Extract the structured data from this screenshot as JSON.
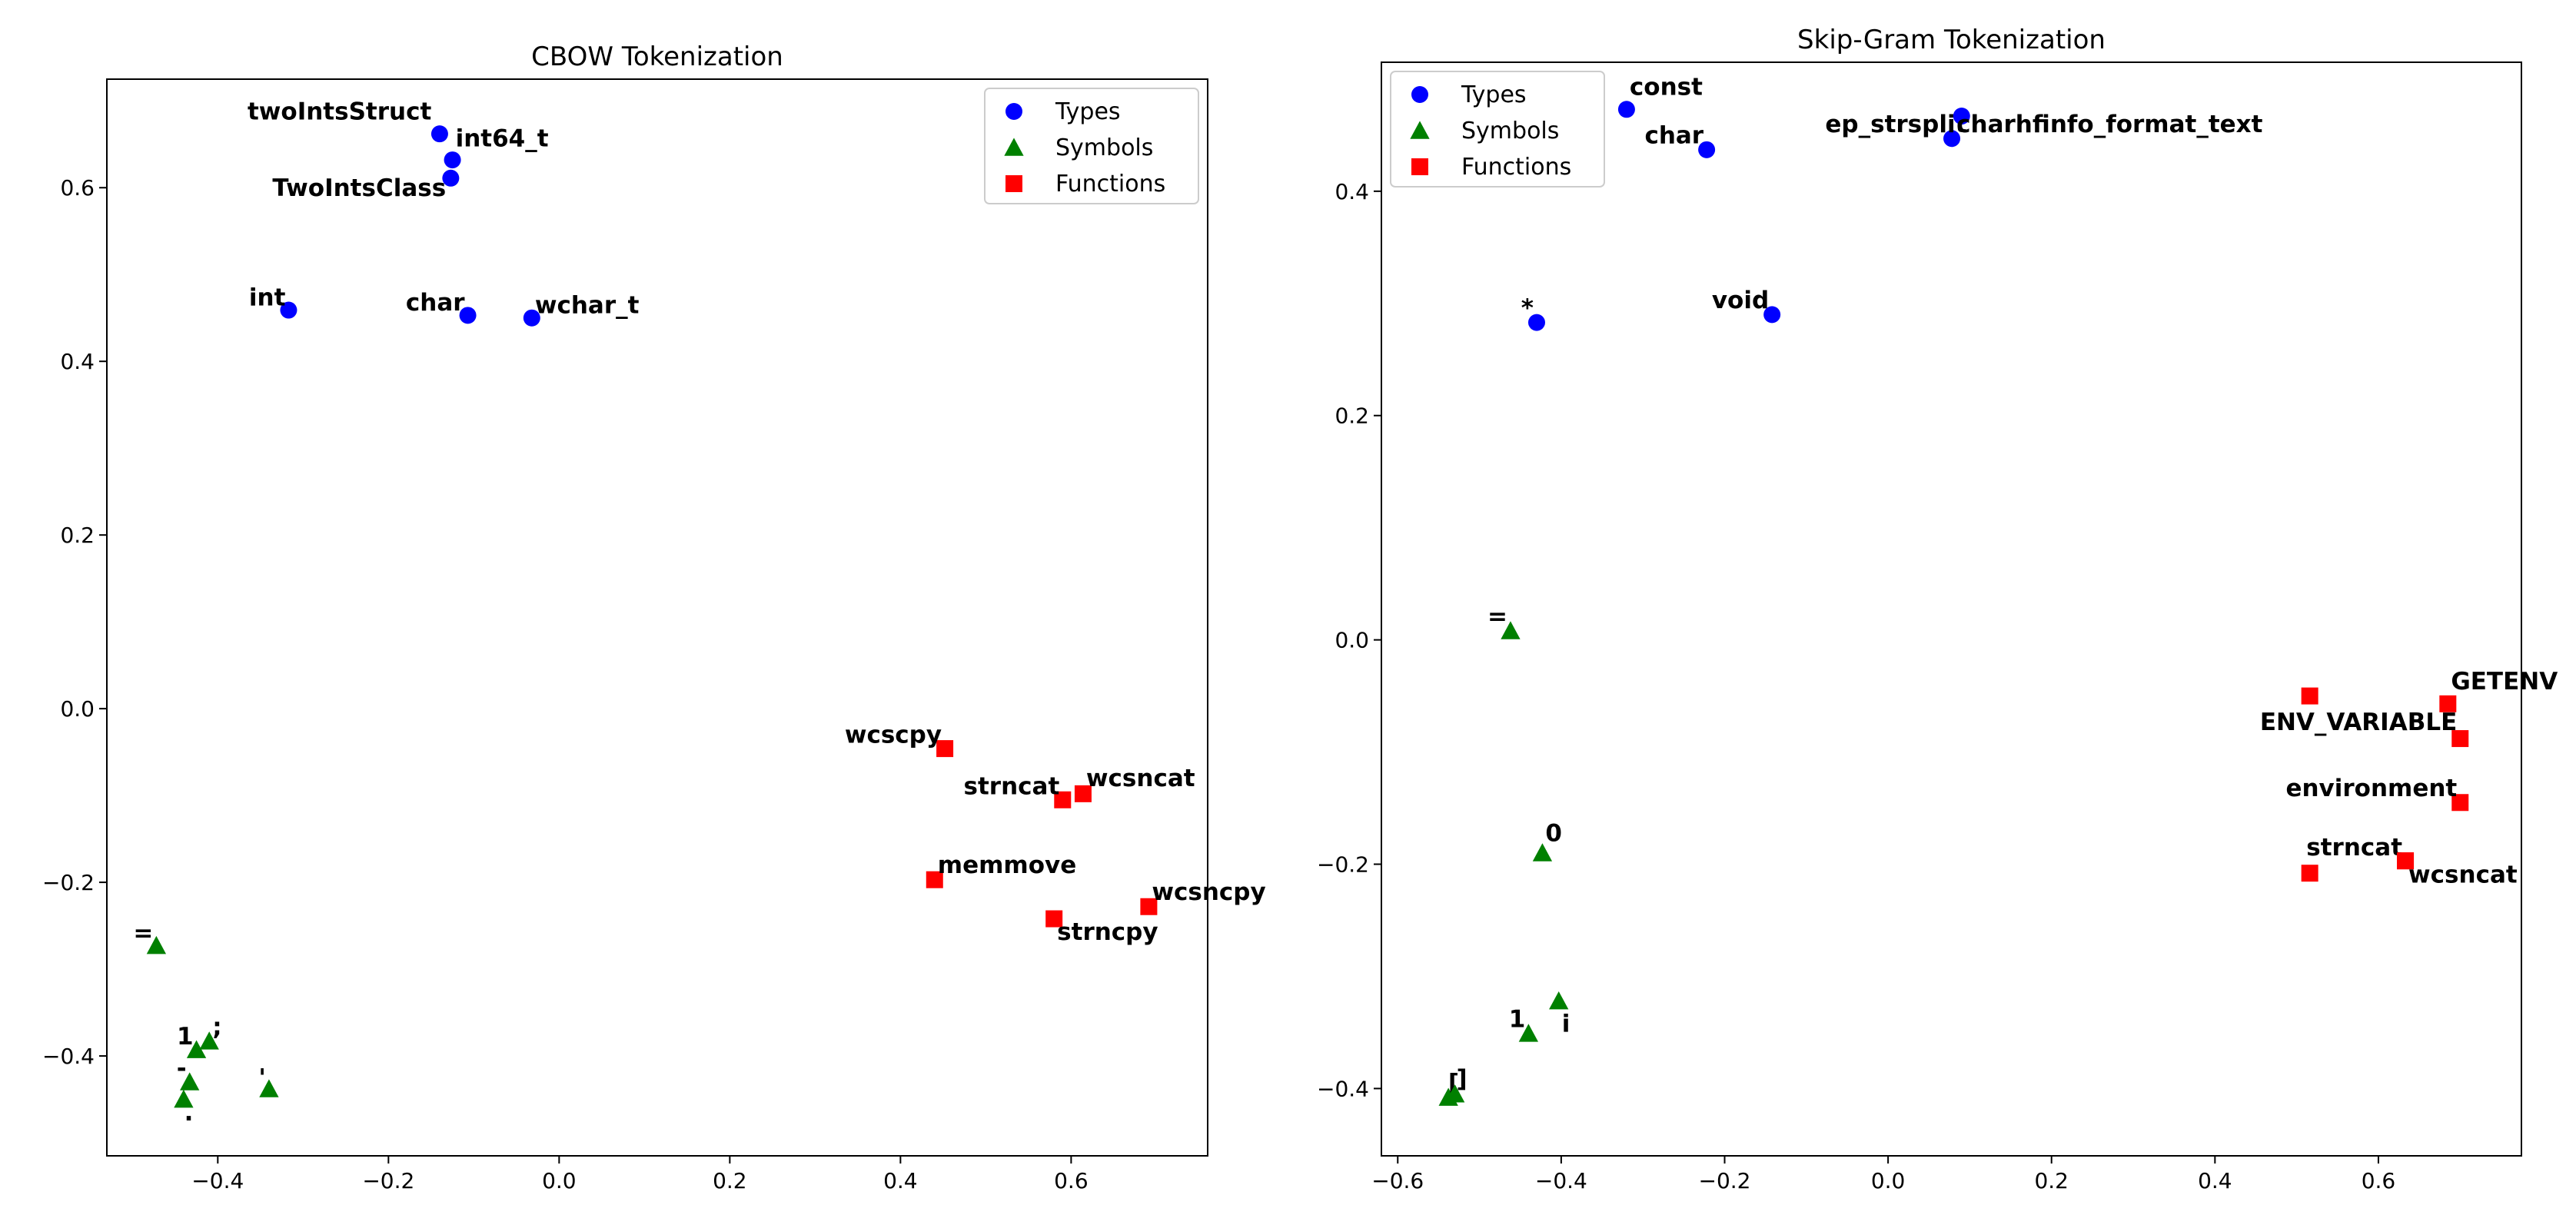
{
  "chart_data": [
    {
      "type": "scatter",
      "title": "CBOW Tokenization",
      "xlabel": "",
      "ylabel": "",
      "xlim": [
        -0.53,
        0.76
      ],
      "ylim": [
        -0.515,
        0.725
      ],
      "xticks": [
        -0.4,
        -0.2,
        0.0,
        0.2,
        0.4,
        0.6
      ],
      "yticks": [
        -0.4,
        -0.2,
        0.0,
        0.2,
        0.4,
        0.6
      ],
      "xtick_labels": [
        "−0.4",
        "−0.2",
        "0.0",
        "0.2",
        "0.4",
        "0.6"
      ],
      "ytick_labels": [
        "−0.4",
        "−0.2",
        "0.0",
        "0.2",
        "0.4",
        "0.6"
      ],
      "grid": false,
      "legend_position": "top-right",
      "series": [
        {
          "name": "Types",
          "marker": "circle",
          "color": "#0000ff",
          "points": [
            {
              "label": "twoIntsStruct",
              "x": -0.14,
              "y": 0.662,
              "anchor": "end",
              "ldx": -0.006,
              "ldy": 0.013
            },
            {
              "label": "int64_t",
              "x": -0.125,
              "y": 0.632,
              "anchor": "start",
              "ldx": 0.0,
              "ldy": 0.012
            },
            {
              "label": "TwoIntsClass",
              "x": -0.127,
              "y": 0.611,
              "anchor": "end",
              "ldx": -0.002,
              "ldy": -0.024
            },
            {
              "label": "int",
              "x": -0.317,
              "y": 0.459,
              "anchor": "end",
              "ldx": 0.0,
              "ldy": 0.002
            },
            {
              "label": "char",
              "x": -0.107,
              "y": 0.453,
              "anchor": "end",
              "ldx": 0.0,
              "ldy": 0.002
            },
            {
              "label": "wchar_t",
              "x": -0.032,
              "y": 0.45,
              "anchor": "start",
              "ldx": 0.0,
              "ldy": 0.002
            }
          ]
        },
        {
          "name": "Symbols",
          "marker": "triangle",
          "color": "#008000",
          "points": [
            {
              "label": "=",
              "x": -0.472,
              "y": -0.273,
              "anchor": "end",
              "ldx": 0.0,
              "ldy": 0.002
            },
            {
              "label": "1",
              "x": -0.425,
              "y": -0.393,
              "anchor": "end",
              "ldx": 0.0,
              "ldy": 0.003
            },
            {
              "label": ";",
              "x": -0.41,
              "y": -0.383,
              "anchor": "start",
              "ldx": 0.0,
              "ldy": 0.004
            },
            {
              "label": "-",
              "x": -0.433,
              "y": -0.43,
              "anchor": "end",
              "ldx": 0.0,
              "ldy": 0.003
            },
            {
              "label": ".",
              "x": -0.44,
              "y": -0.45,
              "anchor": "start",
              "ldx": -0.003,
              "ldy": -0.028
            },
            {
              "label": "'",
              "x": -0.34,
              "y": -0.438,
              "anchor": "end",
              "ldx": 0.0,
              "ldy": 0.0
            }
          ]
        },
        {
          "name": "Functions",
          "marker": "square",
          "color": "#ff0000",
          "points": [
            {
              "label": "wcscpy",
              "x": 0.452,
              "y": -0.046,
              "anchor": "end",
              "ldx": 0.0,
              "ldy": 0.003
            },
            {
              "label": "strncat",
              "x": 0.59,
              "y": -0.105,
              "anchor": "end",
              "ldx": 0.0,
              "ldy": 0.003
            },
            {
              "label": "wcsncat",
              "x": 0.614,
              "y": -0.098,
              "anchor": "start",
              "ldx": 0.0,
              "ldy": 0.005
            },
            {
              "label": "memmove",
              "x": 0.44,
              "y": -0.197,
              "anchor": "start",
              "ldx": 0.0,
              "ldy": 0.004
            },
            {
              "label": "wcsncpy",
              "x": 0.691,
              "y": -0.228,
              "anchor": "start",
              "ldx": 0.0,
              "ldy": 0.004
            },
            {
              "label": "strncpy",
              "x": 0.58,
              "y": -0.242,
              "anchor": "start",
              "ldx": 0.0,
              "ldy": -0.028
            }
          ]
        }
      ]
    },
    {
      "type": "scatter",
      "title": "Skip-Gram Tokenization",
      "xlabel": "",
      "ylabel": "",
      "xlim": [
        -0.62,
        0.775
      ],
      "ylim": [
        -0.46,
        0.515
      ],
      "xticks": [
        -0.6,
        -0.4,
        -0.2,
        0.0,
        0.2,
        0.4,
        0.6
      ],
      "yticks": [
        -0.4,
        -0.2,
        0.0,
        0.2,
        0.4
      ],
      "xtick_labels": [
        "−0.6",
        "−0.4",
        "−0.2",
        "0.0",
        "0.2",
        "0.4",
        "0.6"
      ],
      "ytick_labels": [
        "−0.4",
        "−0.2",
        "0.0",
        "0.2",
        "0.4"
      ],
      "grid": false,
      "legend_position": "top-left",
      "series": [
        {
          "name": "Types",
          "marker": "circle",
          "color": "#0000ff",
          "points": [
            {
              "label": "const",
              "x": -0.32,
              "y": 0.473,
              "anchor": "start",
              "ldx": 0.0,
              "ldy": 0.01
            },
            {
              "label": "char",
              "x": -0.222,
              "y": 0.437,
              "anchor": "end",
              "ldx": 0.0,
              "ldy": 0.003
            },
            {
              "label": "ep_strsplit",
              "x": 0.078,
              "y": 0.447,
              "anchor": "end",
              "ldx": 0.022,
              "ldy": 0.003
            },
            {
              "label": "charhfinfo_format_text",
              "x": 0.09,
              "y": 0.467,
              "anchor": "start",
              "ldx": -0.01,
              "ldy": -0.017
            },
            {
              "label": "*",
              "x": -0.43,
              "y": 0.283,
              "anchor": "end",
              "ldx": 0.0,
              "ldy": 0.003
            },
            {
              "label": "void",
              "x": -0.142,
              "y": 0.29,
              "anchor": "end",
              "ldx": 0.0,
              "ldy": 0.003
            }
          ]
        },
        {
          "name": "Symbols",
          "marker": "triangle",
          "color": "#008000",
          "points": [
            {
              "label": "=",
              "x": -0.462,
              "y": 0.008,
              "anchor": "end",
              "ldx": 0.0,
              "ldy": 0.003
            },
            {
              "label": "0",
              "x": -0.423,
              "y": -0.19,
              "anchor": "start",
              "ldx": 0.0,
              "ldy": 0.008
            },
            {
              "label": "1",
              "x": -0.44,
              "y": -0.351,
              "anchor": "end",
              "ldx": 0.0,
              "ldy": 0.003
            },
            {
              "label": "i",
              "x": -0.403,
              "y": -0.322,
              "anchor": "start",
              "ldx": 0.0,
              "ldy": -0.03
            },
            {
              "label": "[",
              "x": -0.538,
              "y": -0.408,
              "anchor": "start",
              "ldx": -0.004,
              "ldy": 0.003
            },
            {
              "label": "]",
              "x": -0.53,
              "y": -0.405,
              "anchor": "start",
              "ldx": -0.002,
              "ldy": 0.004
            }
          ]
        },
        {
          "name": "Functions",
          "marker": "square",
          "color": "#ff0000",
          "points": [
            {
              "label": "GETENV",
              "x": 0.685,
              "y": -0.057,
              "anchor": "start",
              "ldx": 0.0,
              "ldy": 0.01
            },
            {
              "label": "ENV_VARIABLE",
              "x": 0.7,
              "y": -0.088,
              "anchor": "end",
              "ldx": 0.0,
              "ldy": 0.005
            },
            {
              "label": "environment",
              "x": 0.7,
              "y": -0.145,
              "anchor": "end",
              "ldx": 0.0,
              "ldy": 0.003
            },
            {
              "label": "strncat",
              "x": 0.633,
              "y": -0.197,
              "anchor": "end",
              "ldx": 0.0,
              "ldy": 0.002
            },
            {
              "label": "wcsncat",
              "x": 0.633,
              "y": -0.197,
              "anchor": "start",
              "ldx": 0.0,
              "ldy": -0.022
            },
            {
              "label": "_",
              "x": 0.516,
              "y": -0.05,
              "anchor": "start",
              "ldx": 0.0,
              "ldy": 0.0,
              "hidden": true
            },
            {
              "label": "_",
              "x": 0.516,
              "y": -0.208,
              "anchor": "start",
              "ldx": 0.0,
              "ldy": 0.0,
              "hidden": true
            }
          ]
        }
      ]
    }
  ]
}
